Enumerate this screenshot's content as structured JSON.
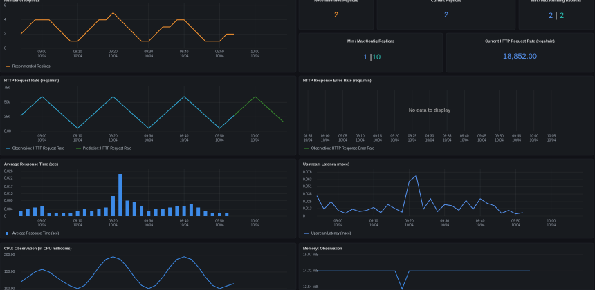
{
  "chart_data": [
    {
      "type": "line",
      "title": "Number of Replicas",
      "x": [
        "08:54",
        "08:56",
        "08:58",
        "09:00",
        "09:02",
        "09:04",
        "09:06",
        "09:08",
        "09:10",
        "09:12",
        "09:14",
        "09:16",
        "09:18",
        "09:20",
        "09:22",
        "09:24",
        "09:26",
        "09:28",
        "09:30",
        "09:32",
        "09:34",
        "09:36",
        "09:38",
        "09:40",
        "09:42",
        "09:44",
        "09:46",
        "09:48",
        "09:50",
        "09:52",
        "09:54"
      ],
      "series": [
        {
          "name": "Recommended Replicas",
          "color": "#FF9830",
          "values": [
            2,
            3,
            4,
            4,
            4,
            3,
            2,
            1,
            1,
            2,
            3,
            4,
            4,
            5,
            4,
            3,
            2,
            1,
            1,
            2,
            3,
            3,
            4,
            4,
            3,
            2,
            1,
            1,
            1,
            2,
            2
          ]
        }
      ],
      "xlim": [
        "08:54",
        "10:09"
      ],
      "ylim": [
        0,
        6.4
      ],
      "yticks": [
        0,
        2,
        4,
        6
      ],
      "xticks": [
        {
          "time": "09:00",
          "date": "10/04"
        },
        {
          "time": "09:10",
          "date": "10/04"
        },
        {
          "time": "09:20",
          "date": "10/04"
        },
        {
          "time": "09:30",
          "date": "10/04"
        },
        {
          "time": "09:40",
          "date": "10/04"
        },
        {
          "time": "09:50",
          "date": "10/04"
        },
        {
          "time": "10:00",
          "date": "10/04"
        }
      ],
      "grid": true
    },
    {
      "type": "line",
      "title": "HTTP Request Rate (reqs/min)",
      "x": [
        "08:54",
        "08:56",
        "08:58",
        "09:00",
        "09:02",
        "09:04",
        "09:06",
        "09:08",
        "09:10",
        "09:12",
        "09:14",
        "09:16",
        "09:18",
        "09:20",
        "09:22",
        "09:24",
        "09:26",
        "09:28",
        "09:30",
        "09:32",
        "09:34",
        "09:36",
        "09:38",
        "09:40",
        "09:42",
        "09:44",
        "09:46",
        "09:48",
        "09:50",
        "09:52",
        "09:54",
        "09:56",
        "09:58",
        "10:00",
        "10:02",
        "10:04",
        "10:06",
        "10:08"
      ],
      "series": [
        {
          "name": "Observation: HTTP Request Rate",
          "color": "#2f9fd8",
          "values": [
            27000,
            38000,
            49000,
            60000,
            49000,
            38000,
            27000,
            16000,
            5000,
            16000,
            27000,
            38000,
            49000,
            60000,
            49000,
            38000,
            27000,
            16000,
            5000,
            16000,
            27000,
            38000,
            49000,
            60000,
            49000,
            38000,
            27000,
            16000,
            5000,
            16000,
            27000,
            null,
            null,
            null,
            null,
            null,
            null,
            null
          ]
        },
        {
          "name": "Prediction: HTTP Request Rate",
          "color": "#37872d",
          "values": [
            27000,
            38000,
            49000,
            60000,
            49000,
            38000,
            27000,
            16000,
            5000,
            16000,
            27000,
            38000,
            49000,
            60000,
            49000,
            38000,
            27000,
            16000,
            5000,
            16000,
            27000,
            38000,
            49000,
            60000,
            49000,
            38000,
            27000,
            16000,
            5000,
            16000,
            27000,
            38000,
            49000,
            60000,
            49000,
            38000,
            27000,
            16000
          ]
        }
      ],
      "xlim": [
        "08:54",
        "10:09"
      ],
      "ylim": [
        0,
        79000
      ],
      "yticks": [
        {
          "value": 0,
          "label": "0.00"
        },
        {
          "value": 25000,
          "label": "25k"
        },
        {
          "value": 50000,
          "label": "50k"
        },
        {
          "value": 75000,
          "label": "75k"
        }
      ],
      "xticks": [
        {
          "time": "09:00",
          "date": "10/04"
        },
        {
          "time": "09:10",
          "date": "10/04"
        },
        {
          "time": "09:20",
          "date": "10/04"
        },
        {
          "time": "09:30",
          "date": "10/04"
        },
        {
          "time": "09:40",
          "date": "10/04"
        },
        {
          "time": "09:50",
          "date": "10/04"
        },
        {
          "time": "10:00",
          "date": "10/04"
        }
      ],
      "grid": true
    },
    {
      "type": "line",
      "title": "HTTP Response Error Rate (reqs/min)",
      "message": "No data to display",
      "series": [
        {
          "name": "Observation: HTTP Response Error Rate",
          "color": "#37872d",
          "values": []
        }
      ],
      "xlim": [
        "08:53",
        "10:07"
      ],
      "xticks": [
        {
          "time": "08:55",
          "date": "10/04"
        },
        {
          "time": "09:00",
          "date": "10/04"
        },
        {
          "time": "09:05",
          "date": "10/04"
        },
        {
          "time": "09:10",
          "date": "10/04"
        },
        {
          "time": "09:15",
          "date": "10/04"
        },
        {
          "time": "09:20",
          "date": "10/04"
        },
        {
          "time": "09:25",
          "date": "10/04"
        },
        {
          "time": "09:30",
          "date": "10/04"
        },
        {
          "time": "09:35",
          "date": "10/04"
        },
        {
          "time": "09:40",
          "date": "10/04"
        },
        {
          "time": "09:45",
          "date": "10/04"
        },
        {
          "time": "09:50",
          "date": "10/04"
        },
        {
          "time": "09:55",
          "date": "10/04"
        },
        {
          "time": "10:00",
          "date": "10/04"
        },
        {
          "time": "10:05",
          "date": "10/04"
        }
      ],
      "grid": true
    },
    {
      "type": "bar",
      "title": "Average Response Time (sec)",
      "x": [
        "08:54",
        "08:56",
        "08:58",
        "09:00",
        "09:02",
        "09:04",
        "09:06",
        "09:08",
        "09:10",
        "09:12",
        "09:14",
        "09:16",
        "09:18",
        "09:20",
        "09:22",
        "09:24",
        "09:26",
        "09:28",
        "09:30",
        "09:32",
        "09:34",
        "09:36",
        "09:38",
        "09:40",
        "09:42",
        "09:44",
        "09:46",
        "09:48",
        "09:50",
        "09:52"
      ],
      "series": [
        {
          "name": "Average Response Time (sec)",
          "color": "#3d8be8",
          "values": [
            0.003,
            0.004,
            0.005,
            0.006,
            0.002,
            0.002,
            0.002,
            0.002,
            0.003,
            0.004,
            0.003,
            0.004,
            0.005,
            0.0116,
            0.0244,
            0.009,
            0.008,
            0.006,
            0.003,
            0.004,
            0.004,
            0.005,
            0.006,
            0.006,
            0.007,
            0.005,
            0.003,
            0.002,
            0.002,
            0.002
          ]
        }
      ],
      "xlim": [
        "08:54",
        "10:09"
      ],
      "ylim": [
        0,
        0.0272
      ],
      "yticks": [
        0,
        0.004,
        0.009,
        0.013,
        0.017,
        0.022,
        0.026
      ],
      "xticks": [
        {
          "time": "09:00",
          "date": "10/04"
        },
        {
          "time": "09:10",
          "date": "10/04"
        },
        {
          "time": "09:20",
          "date": "10/04"
        },
        {
          "time": "09:30",
          "date": "10/04"
        },
        {
          "time": "09:40",
          "date": "10/04"
        },
        {
          "time": "09:50",
          "date": "10/04"
        },
        {
          "time": "10:00",
          "date": "10/04"
        }
      ],
      "grid": true
    },
    {
      "type": "line",
      "title": "Upstream Latency (msec)",
      "x": [
        "08:54",
        "08:56",
        "08:58",
        "09:00",
        "09:02",
        "09:04",
        "09:06",
        "09:08",
        "09:10",
        "09:12",
        "09:14",
        "09:16",
        "09:18",
        "09:20",
        "09:22",
        "09:24",
        "09:26",
        "09:28",
        "09:30",
        "09:32",
        "09:34",
        "09:36",
        "09:38",
        "09:40",
        "09:42",
        "09:44",
        "09:46",
        "09:48",
        "09:50",
        "09:52"
      ],
      "series": [
        {
          "name": "Upstream Latency (msec)",
          "color": "#5794F2",
          "values": [
            0.035,
            0.012,
            0.025,
            0.01,
            0.005,
            0.012,
            0.008,
            0.01,
            0.015,
            0.006,
            0.02,
            0.013,
            0.007,
            0.06,
            0.07,
            0.012,
            0.03,
            0.008,
            0.02,
            0.018,
            0.01,
            0.027,
            0.012,
            0.03,
            0.022,
            0.018,
            0.005,
            0.01,
            0.004,
            0.006
          ]
        }
      ],
      "xlim": [
        "08:54",
        "10:09"
      ],
      "ylim": [
        0,
        0.081
      ],
      "yticks": [
        0,
        0.013,
        0.025,
        0.038,
        0.051,
        0.063,
        0.076
      ],
      "xticks": [
        {
          "time": "09:00",
          "date": "10/04"
        },
        {
          "time": "09:10",
          "date": "10/04"
        },
        {
          "time": "09:20",
          "date": "10/04"
        },
        {
          "time": "09:30",
          "date": "10/04"
        },
        {
          "time": "09:40",
          "date": "10/04"
        },
        {
          "time": "09:50",
          "date": "10/04"
        },
        {
          "time": "10:00",
          "date": "10/04"
        }
      ],
      "grid": true
    },
    {
      "type": "line",
      "title": "CPU: Observation (in CPU millicores)",
      "x": [
        "08:54",
        "08:56",
        "08:58",
        "09:00",
        "09:02",
        "09:04",
        "09:06",
        "09:08",
        "09:10",
        "09:12",
        "09:14",
        "09:16",
        "09:18",
        "09:20",
        "09:22",
        "09:24",
        "09:26",
        "09:28",
        "09:30",
        "09:32",
        "09:34",
        "09:36",
        "09:38",
        "09:40",
        "09:42",
        "09:44",
        "09:46",
        "09:48",
        "09:50",
        "09:52",
        "09:54"
      ],
      "values": [
        120,
        135,
        150,
        158,
        150,
        135,
        120,
        108,
        100,
        110,
        135,
        165,
        188,
        196,
        188,
        165,
        135,
        110,
        100,
        110,
        135,
        165,
        188,
        196,
        188,
        165,
        135,
        110,
        100,
        108,
        115
      ],
      "color": "#3d8be8",
      "xlim": [
        "08:54",
        "10:09"
      ],
      "ylim": [
        100,
        210
      ],
      "yticks": [
        {
          "value": 100,
          "label": "100.00"
        },
        {
          "value": 150,
          "label": "150.00"
        },
        {
          "value": 200,
          "label": "200.00"
        }
      ],
      "grid": true
    },
    {
      "type": "line",
      "title": "Memory: Observation",
      "x": [
        "08:54",
        "08:56",
        "08:58",
        "09:00",
        "09:02",
        "09:04",
        "09:06",
        "09:08",
        "09:10",
        "09:12",
        "09:14",
        "09:16",
        "09:18",
        "09:20",
        "09:22",
        "09:24",
        "09:26",
        "09:28",
        "09:30",
        "09:32",
        "09:34",
        "09:36",
        "09:38",
        "09:40",
        "09:42",
        "09:44",
        "09:46",
        "09:48",
        "09:50",
        "09:52",
        "09:54"
      ],
      "values": [
        14.31,
        14.31,
        14.31,
        14.31,
        14.31,
        14.31,
        14.31,
        14.31,
        14.31,
        14.31,
        14.31,
        14.31,
        13.45,
        14.31,
        14.31,
        14.31,
        14.31,
        14.31,
        14.31,
        14.31,
        14.31,
        14.31,
        14.31,
        14.31,
        14.31,
        14.31,
        14.31,
        14.31,
        14.31,
        14.31,
        14.31
      ],
      "color": "#3d8be8",
      "xlim": [
        "08:54",
        "10:09"
      ],
      "ylim": [
        13.4,
        15.2
      ],
      "yticks": [
        {
          "value": 13.54,
          "label": "13.54 MiB"
        },
        {
          "value": 14.31,
          "label": "14.31 MiB"
        },
        {
          "value": 15.07,
          "label": "15.07 MiB"
        }
      ],
      "grid": true
    }
  ],
  "stats": [
    {
      "title": "Recommended Replicas",
      "values": [
        2
      ],
      "colors": [
        "#FF9830"
      ]
    },
    {
      "title": "Current Replicas",
      "values": [
        2
      ],
      "colors": [
        "#5794F2"
      ]
    },
    {
      "title": "Min / Max Running Replicas",
      "values": [
        2,
        2
      ],
      "colors": [
        "#5794F2",
        "#2bc3b5"
      ],
      "separator": "|"
    },
    {
      "title": "Min / Max Config Replicas",
      "values": [
        1,
        10
      ],
      "colors": [
        "#5794F2",
        "#2bc3b5"
      ],
      "separator": "|"
    },
    {
      "title": "Current HTTP Request Rate (reqs/min)",
      "values": [
        18852
      ],
      "value_labels": [
        "18,852.00"
      ],
      "colors": [
        "#5794F2"
      ]
    }
  ]
}
